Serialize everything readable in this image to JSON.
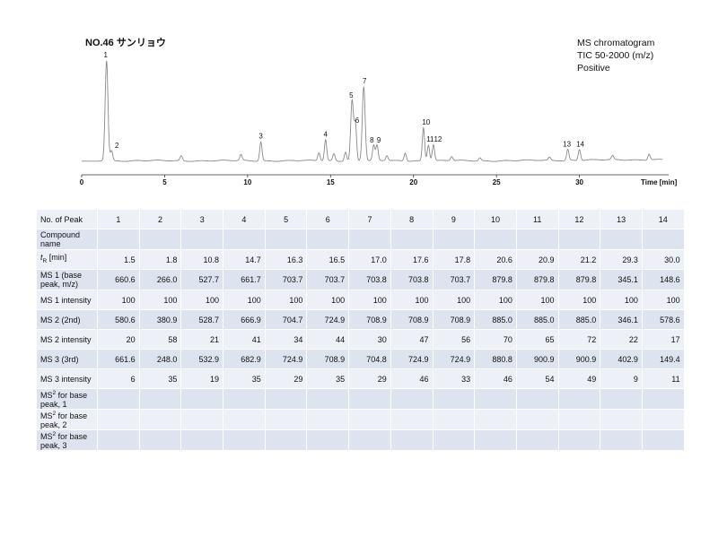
{
  "title": "NO.46 サンリョウ",
  "ms_info": [
    "MS chromatogram",
    "TIC 50-2000 (m/z)",
    "Positive"
  ],
  "chart_data": {
    "type": "line",
    "xlabel": "Time [min]",
    "xlim": [
      0,
      35
    ],
    "xticks": [
      0,
      5,
      10,
      15,
      20,
      25,
      30
    ],
    "ylim": [
      0,
      100
    ],
    "grid": false,
    "peaks": [
      {
        "label": "1",
        "rt": 1.5,
        "height": 100
      },
      {
        "label": "2",
        "rt": 1.8,
        "height": 10
      },
      {
        "label": "3",
        "rt": 10.8,
        "height": 19
      },
      {
        "label": "4",
        "rt": 14.7,
        "height": 21
      },
      {
        "label": "5",
        "rt": 16.3,
        "height": 60
      },
      {
        "label": "6",
        "rt": 16.5,
        "height": 35
      },
      {
        "label": "7",
        "rt": 17.0,
        "height": 74
      },
      {
        "label": "8",
        "rt": 17.6,
        "height": 15
      },
      {
        "label": "9",
        "rt": 17.8,
        "height": 15
      },
      {
        "label": "10",
        "rt": 20.6,
        "height": 33
      },
      {
        "label": "11",
        "rt": 20.9,
        "height": 16
      },
      {
        "label": "12",
        "rt": 21.2,
        "height": 16
      },
      {
        "label": "13",
        "rt": 29.3,
        "height": 11
      },
      {
        "label": "14",
        "rt": 30.0,
        "height": 11
      }
    ],
    "minor_peaks": [
      {
        "rt": 6.0,
        "height": 5
      },
      {
        "rt": 9.6,
        "height": 6
      },
      {
        "rt": 14.3,
        "height": 8
      },
      {
        "rt": 15.2,
        "height": 7
      },
      {
        "rt": 15.9,
        "height": 9
      },
      {
        "rt": 18.4,
        "height": 5
      },
      {
        "rt": 19.5,
        "height": 8
      },
      {
        "rt": 22.3,
        "height": 4
      },
      {
        "rt": 24.0,
        "height": 3
      },
      {
        "rt": 28.2,
        "height": 3
      },
      {
        "rt": 32.0,
        "height": 4
      },
      {
        "rt": 34.2,
        "height": 6
      }
    ]
  },
  "table": {
    "peak_header": "No. of Peak",
    "peak_numbers": [
      "1",
      "2",
      "3",
      "4",
      "5",
      "6",
      "7",
      "8",
      "9",
      "10",
      "11",
      "12",
      "13",
      "14"
    ],
    "rows": [
      {
        "label": "Compound name",
        "values": [
          "",
          "",
          "",
          "",
          "",
          "",
          "",
          "",
          "",
          "",
          "",
          "",
          "",
          ""
        ]
      },
      {
        "label_html": "<i>t</i><sub>R</sub> [min]",
        "label": "tR [min]",
        "values": [
          "1.5",
          "1.8",
          "10.8",
          "14.7",
          "16.3",
          "16.5",
          "17.0",
          "17.6",
          "17.8",
          "20.6",
          "20.9",
          "21.2",
          "29.3",
          "30.0"
        ]
      },
      {
        "label": "MS 1 (base peak, m/z)",
        "values": [
          "660.6",
          "266.0",
          "527.7",
          "661.7",
          "703.7",
          "703.7",
          "703.8",
          "703.8",
          "703.7",
          "879.8",
          "879.8",
          "879.8",
          "345.1",
          "148.6"
        ]
      },
      {
        "label": "MS 1 intensity",
        "values": [
          "100",
          "100",
          "100",
          "100",
          "100",
          "100",
          "100",
          "100",
          "100",
          "100",
          "100",
          "100",
          "100",
          "100"
        ]
      },
      {
        "label": "MS 2 (2nd)",
        "values": [
          "580.6",
          "380.9",
          "528.7",
          "666.9",
          "704.7",
          "724.9",
          "708.9",
          "708.9",
          "708.9",
          "885.0",
          "885.0",
          "885.0",
          "346.1",
          "578.6"
        ]
      },
      {
        "label": "MS 2 intensity",
        "values": [
          "20",
          "58",
          "21",
          "41",
          "34",
          "44",
          "30",
          "47",
          "56",
          "70",
          "65",
          "72",
          "22",
          "17"
        ]
      },
      {
        "label": "MS 3 (3rd)",
        "values": [
          "661.6",
          "248.0",
          "532.9",
          "682.9",
          "724.9",
          "708.9",
          "704.8",
          "724.9",
          "724.9",
          "880.8",
          "900.9",
          "900.9",
          "402.9",
          "149.4"
        ]
      },
      {
        "label": "MS 3 intensity",
        "values": [
          "6",
          "35",
          "19",
          "35",
          "29",
          "35",
          "29",
          "46",
          "33",
          "46",
          "54",
          "49",
          "9",
          "11"
        ]
      },
      {
        "label_html": "MS<sup>2</sup> for base peak, 1",
        "label": "MS2 for base peak, 1",
        "values": [
          "",
          "",
          "",
          "",
          "",
          "",
          "",
          "",
          "",
          "",
          "",
          "",
          "",
          ""
        ]
      },
      {
        "label_html": "MS<sup>2</sup> for base peak, 2",
        "label": "MS2 for base peak, 2",
        "values": [
          "",
          "",
          "",
          "",
          "",
          "",
          "",
          "",
          "",
          "",
          "",
          "",
          "",
          ""
        ]
      },
      {
        "label_html": "MS<sup>2</sup> for base peak, 3",
        "label": "MS2 for base peak, 3",
        "values": [
          "",
          "",
          "",
          "",
          "",
          "",
          "",
          "",
          "",
          "",
          "",
          "",
          "",
          ""
        ]
      }
    ]
  }
}
